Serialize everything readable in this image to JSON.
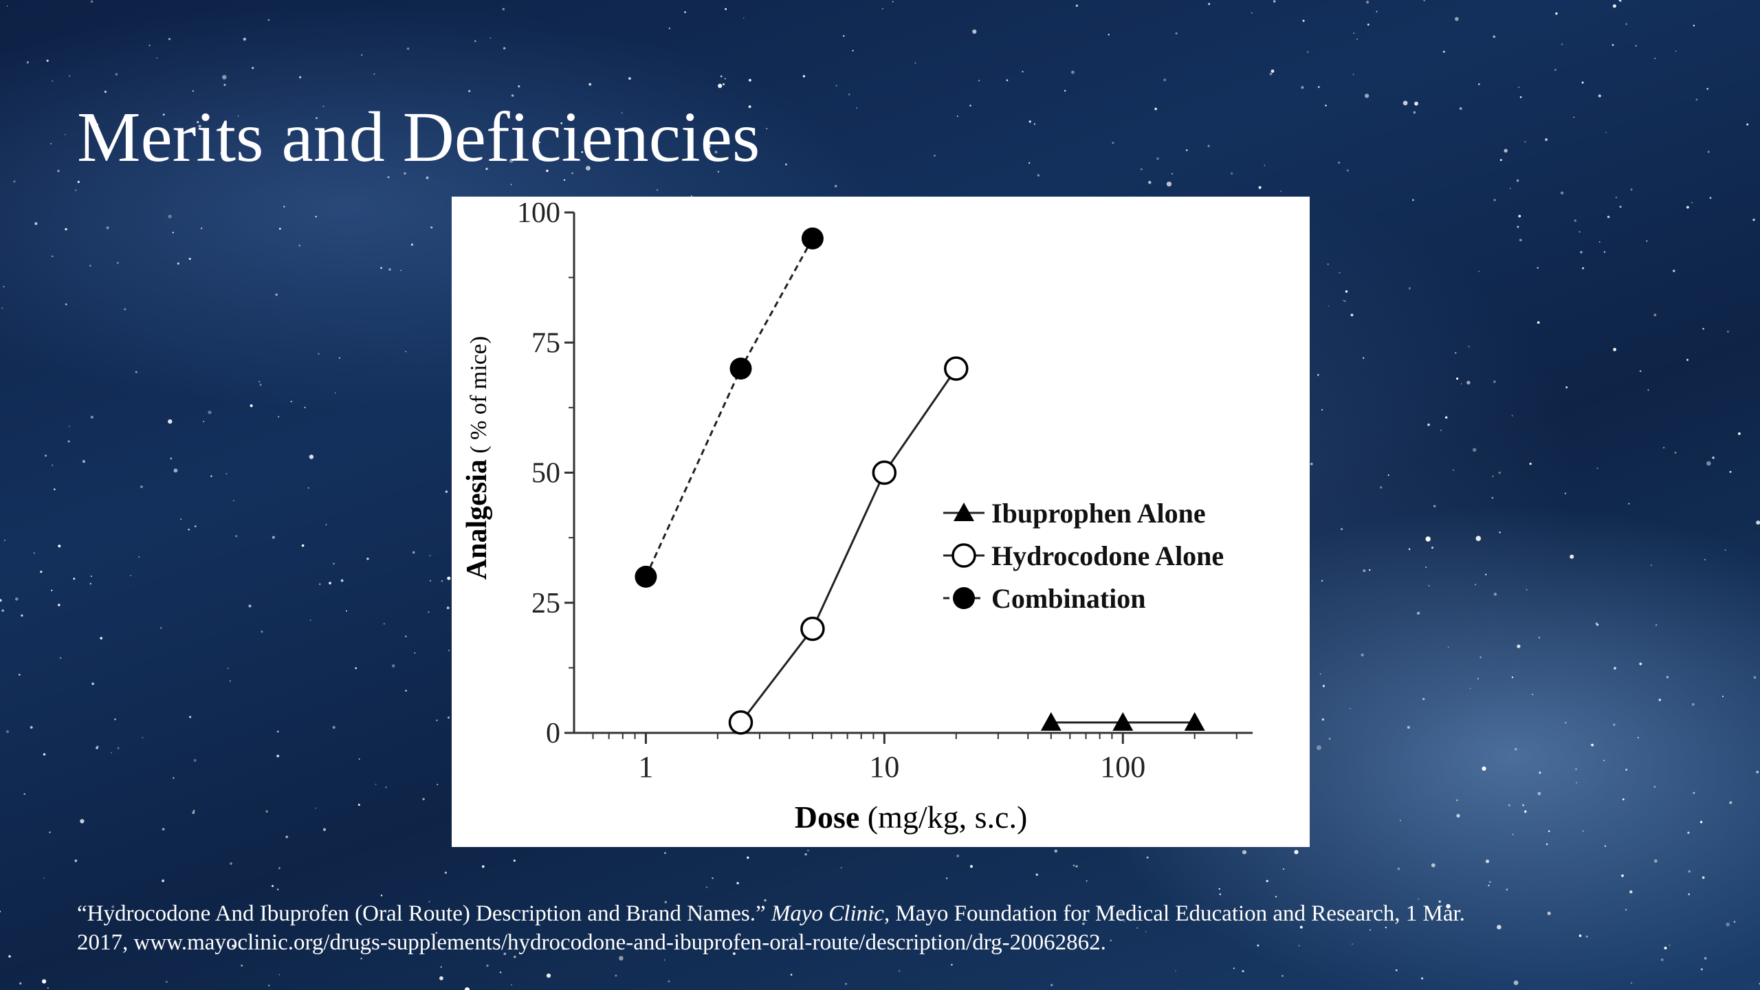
{
  "slide": {
    "title": "Merits and Deficiencies"
  },
  "citation": {
    "part1": "“Hydrocodone And Ibuprofen (Oral Route) Description and Brand Names.” ",
    "journal": "Mayo Clinic",
    "part2": ", Mayo Foundation for Medical Education and Research, 1 Mar.",
    "line2": "2017, www.mayoclinic.org/drugs-supplements/hydrocodone-and-ibuprofen-oral-route/description/drg-20062862."
  },
  "chart_data": {
    "type": "line",
    "xscale": "log",
    "xlim": [
      0.5,
      350
    ],
    "ylim": [
      0,
      100
    ],
    "xticks": [
      1,
      10,
      100
    ],
    "xtick_labels": [
      "1",
      "10",
      "100"
    ],
    "yticks": [
      0,
      25,
      50,
      75,
      100
    ],
    "ytick_labels": [
      "0",
      "25",
      "50",
      "75",
      "100"
    ],
    "xlabel_bold": "Dose",
    "xlabel_rest": " (mg/kg, s.c.)",
    "ylabel_bold": "Analgesia",
    "ylabel_rest": " ( % of mice)",
    "grid": false,
    "legend_position": "center-right",
    "series": [
      {
        "name": "Ibuprophen Alone",
        "marker": "triangle",
        "line": "solid",
        "x": [
          50,
          100,
          200
        ],
        "y": [
          2,
          2,
          2
        ]
      },
      {
        "name": "Hydrocodone Alone",
        "marker": "open-circle",
        "line": "solid",
        "x": [
          2.5,
          5,
          10,
          20
        ],
        "y": [
          2,
          20,
          50,
          70
        ]
      },
      {
        "name": "Combination",
        "marker": "filled-circle",
        "line": "dashed",
        "x": [
          1,
          2.5,
          5
        ],
        "y": [
          30,
          70,
          95
        ]
      }
    ]
  }
}
